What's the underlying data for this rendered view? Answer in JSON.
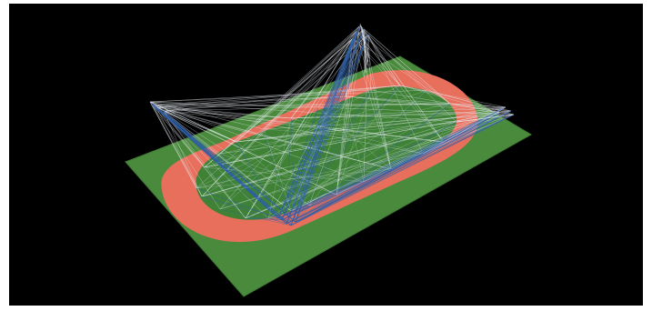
{
  "scene": {
    "description_name": "3d-stadium-track-wireframe",
    "colors": {
      "background": "#000000",
      "field": "#4a8a3c",
      "field_edge": "#3e7833",
      "track": "#e86f5c",
      "infield": "#3f8236",
      "wire_light": "#e9eef5",
      "wire_blue": "#2f5fa8"
    }
  }
}
